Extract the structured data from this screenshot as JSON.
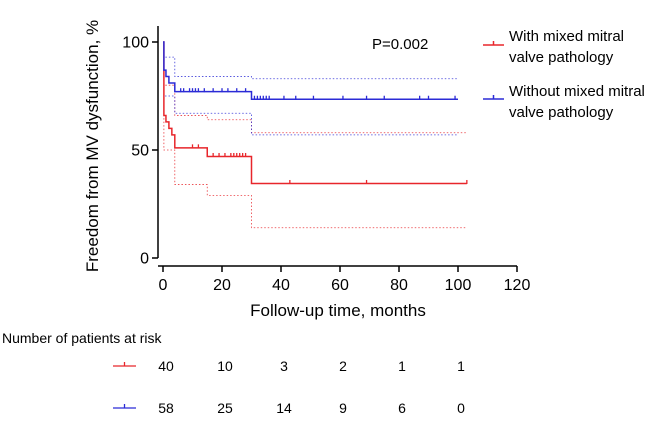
{
  "chart_data": {
    "type": "line",
    "subtype": "kaplan-meier",
    "ylabel": "Freedom from MV dysfunction, %",
    "xlabel": "Follow-up time, months",
    "xlim": [
      0,
      120
    ],
    "ylim": [
      0,
      100
    ],
    "xticks": [
      "0",
      "20",
      "40",
      "60",
      "80",
      "100",
      "120"
    ],
    "yticks": [
      "0",
      "50",
      "100"
    ],
    "annotation": "P=0.002",
    "legend_position": "right",
    "series": [
      {
        "name": "With mixed mitral valve pathology",
        "color": "#e8262b",
        "steps": [
          [
            0,
            100
          ],
          [
            0.3,
            66
          ],
          [
            1,
            63
          ],
          [
            2,
            60
          ],
          [
            3,
            57
          ],
          [
            4,
            51
          ],
          [
            15,
            47
          ],
          [
            30,
            34.5
          ],
          [
            103,
            34.5
          ]
        ],
        "censored": [
          [
            10,
            51
          ],
          [
            12,
            51
          ],
          [
            17,
            47
          ],
          [
            19,
            47
          ],
          [
            21,
            47
          ],
          [
            23,
            47
          ],
          [
            24,
            47
          ],
          [
            25,
            47
          ],
          [
            26,
            47
          ],
          [
            27,
            47
          ],
          [
            28,
            47
          ],
          [
            43,
            34.5
          ],
          [
            69,
            34.5
          ],
          [
            103,
            34.5
          ]
        ],
        "ci_upper": [
          [
            0,
            100
          ],
          [
            0.3,
            80
          ],
          [
            4,
            66
          ],
          [
            15,
            64
          ],
          [
            30,
            58
          ],
          [
            103,
            58
          ]
        ],
        "ci_lower": [
          [
            0,
            100
          ],
          [
            0.3,
            50
          ],
          [
            4,
            34
          ],
          [
            15,
            29
          ],
          [
            30,
            14
          ],
          [
            103,
            14
          ]
        ]
      },
      {
        "name": "Without mixed mitral valve pathology",
        "color": "#2b2bd6",
        "steps": [
          [
            0,
            100
          ],
          [
            0.3,
            87
          ],
          [
            1,
            84
          ],
          [
            2,
            81
          ],
          [
            4,
            77
          ],
          [
            30,
            73.5
          ],
          [
            100,
            73.5
          ]
        ],
        "censored": [
          [
            6,
            77
          ],
          [
            7,
            77
          ],
          [
            9,
            77
          ],
          [
            10,
            77
          ],
          [
            11,
            77
          ],
          [
            12,
            77
          ],
          [
            14,
            77
          ],
          [
            17,
            77
          ],
          [
            20,
            77
          ],
          [
            22,
            77
          ],
          [
            25,
            77
          ],
          [
            28,
            77
          ],
          [
            31,
            73.5
          ],
          [
            32,
            73.5
          ],
          [
            33,
            73.5
          ],
          [
            34,
            73.5
          ],
          [
            35,
            73.5
          ],
          [
            36,
            73.5
          ],
          [
            41,
            73.5
          ],
          [
            45,
            73.5
          ],
          [
            51,
            73.5
          ],
          [
            61,
            73.5
          ],
          [
            69,
            73.5
          ],
          [
            75,
            73.5
          ],
          [
            87,
            73.5
          ],
          [
            90,
            73.5
          ],
          [
            99,
            73.5
          ]
        ],
        "ci_upper": [
          [
            0,
            100
          ],
          [
            0.3,
            93
          ],
          [
            4,
            84
          ],
          [
            30,
            83
          ],
          [
            100,
            83
          ]
        ],
        "ci_lower": [
          [
            0,
            100
          ],
          [
            0.3,
            75
          ],
          [
            4,
            67
          ],
          [
            30,
            57
          ],
          [
            100,
            57
          ]
        ]
      }
    ],
    "risk_table": {
      "title": "Number of patients at risk",
      "rows": [
        {
          "color": "#e8262b",
          "values": [
            "40",
            "10",
            "3",
            "2",
            "1",
            "1"
          ]
        },
        {
          "color": "#2b2bd6",
          "values": [
            "58",
            "25",
            "14",
            "9",
            "6",
            "0"
          ]
        }
      ]
    }
  },
  "legend": {
    "items": [
      {
        "line1": "With mixed mitral",
        "line2": "valve pathology"
      },
      {
        "line1": "Without mixed mitral",
        "line2": "valve pathology"
      }
    ]
  }
}
